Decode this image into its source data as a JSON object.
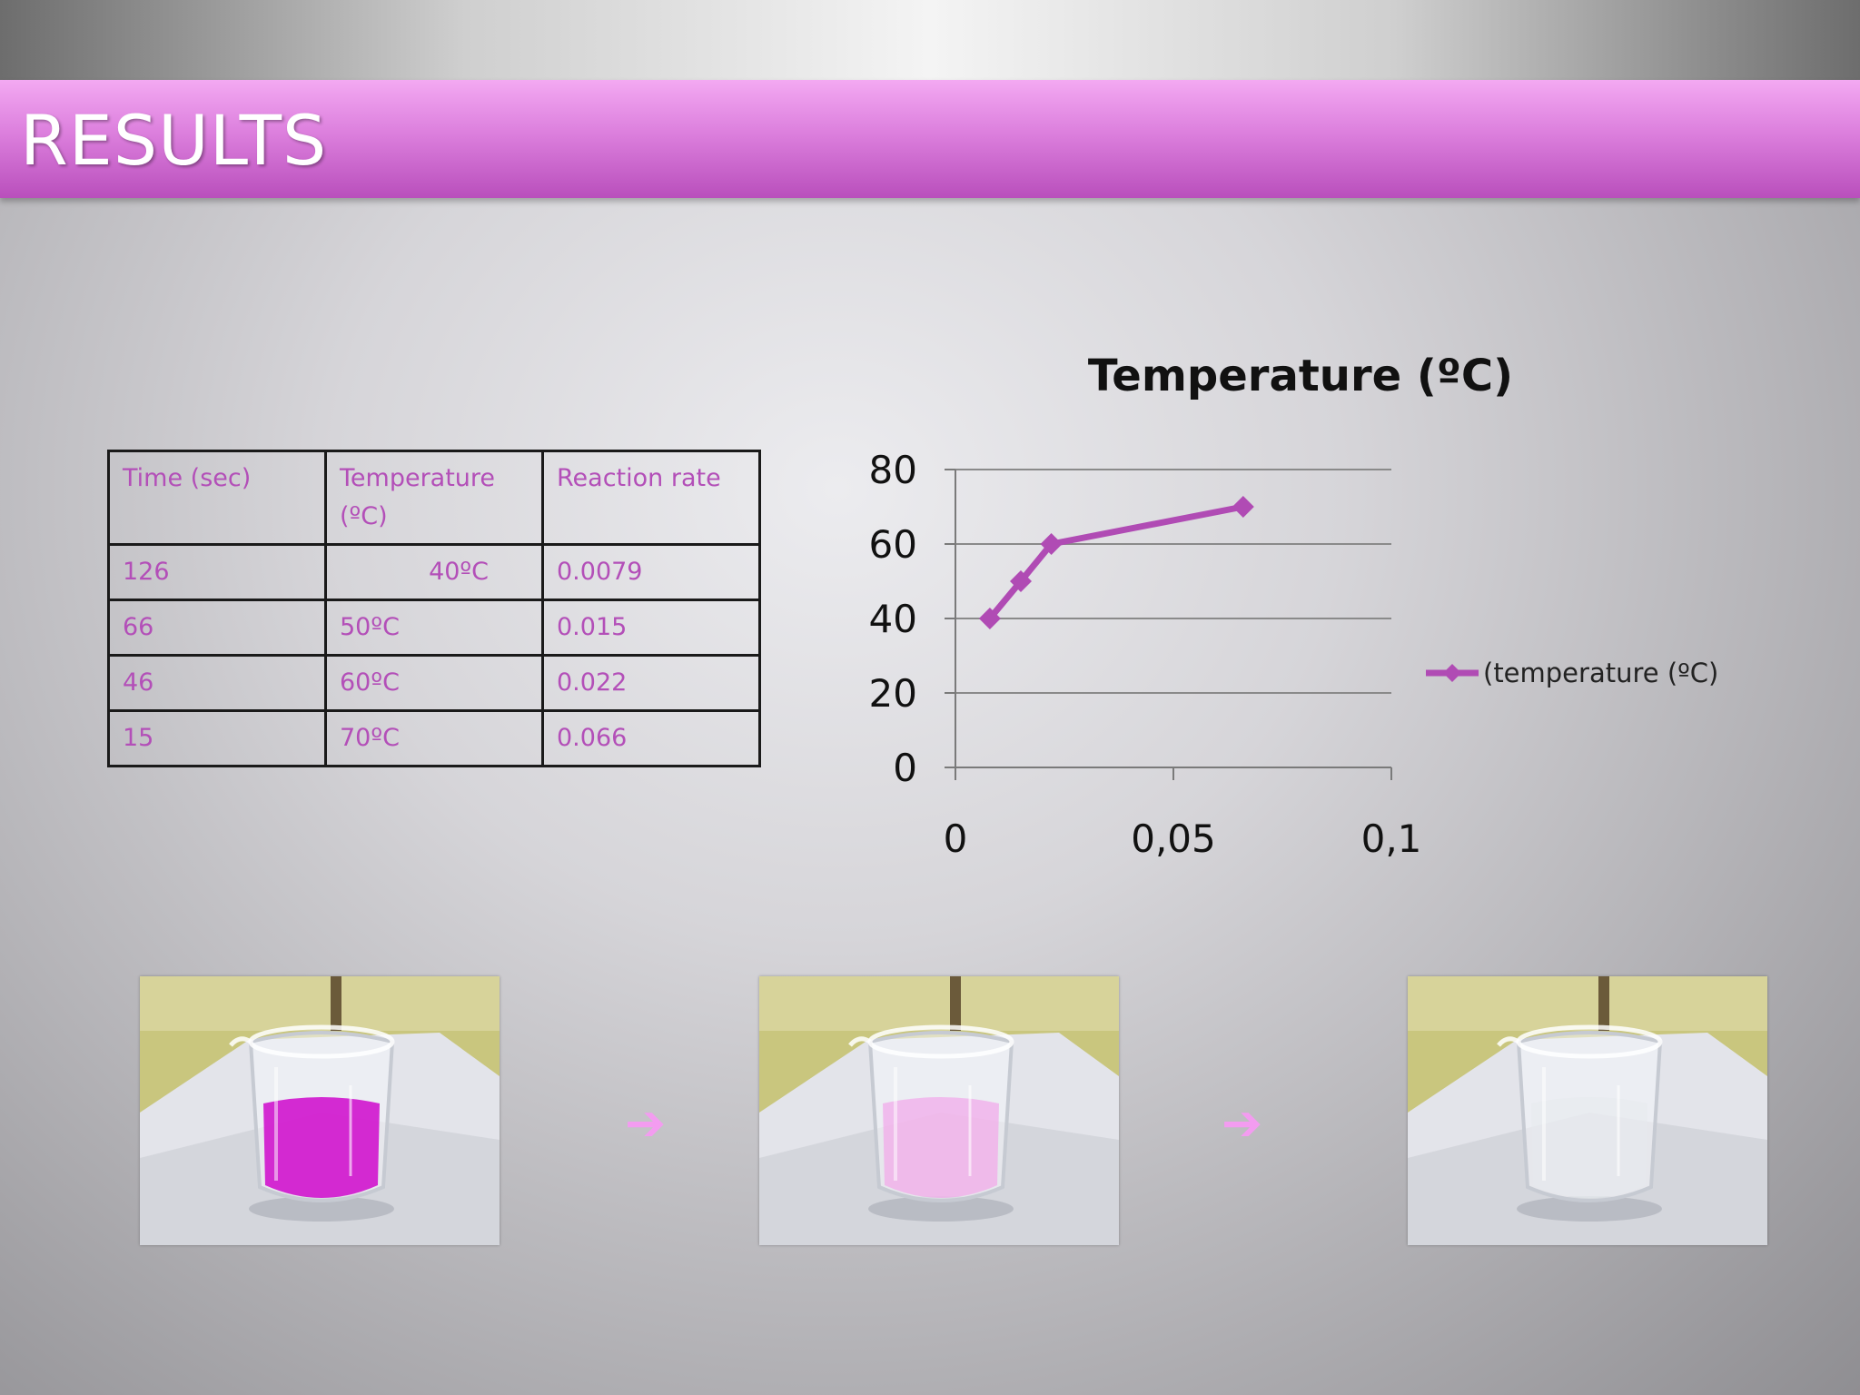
{
  "slide": {
    "title": "RESULTS"
  },
  "table": {
    "headers": [
      "Time (sec)",
      "Temperature (ºC)",
      "Reaction rate"
    ],
    "rows": [
      [
        "126",
        "40ºC",
        "0.0079"
      ],
      [
        "66",
        "50ºC",
        "0.015"
      ],
      [
        "46",
        "60ºC",
        "0.022"
      ],
      [
        "15",
        "70ºC",
        "0.066"
      ]
    ]
  },
  "chart_data": {
    "type": "line",
    "title": "Temperature (ºC)",
    "xlabel": "",
    "ylabel": "",
    "x_ticks": [
      "0",
      "0,05",
      "0,1"
    ],
    "y_ticks": [
      "0",
      "20",
      "40",
      "60",
      "80"
    ],
    "xlim": [
      0,
      0.1
    ],
    "ylim": [
      0,
      80
    ],
    "grid": true,
    "legend_position": "right",
    "series": [
      {
        "name": "(temperature (ºC)",
        "color": "#b04bb4",
        "points": [
          {
            "x": 0.0079,
            "y": 40
          },
          {
            "x": 0.015,
            "y": 50
          },
          {
            "x": 0.022,
            "y": 60
          },
          {
            "x": 0.066,
            "y": 70
          }
        ]
      }
    ]
  },
  "photos": [
    {
      "liquid_color": "#d21fd0",
      "liquid_opacity": 0.95
    },
    {
      "liquid_color": "#f2a6ea",
      "liquid_opacity": 0.7
    },
    {
      "liquid_color": "#e6e9ee",
      "liquid_opacity": 0.5
    }
  ],
  "arrows": [
    "➔",
    "➔"
  ]
}
